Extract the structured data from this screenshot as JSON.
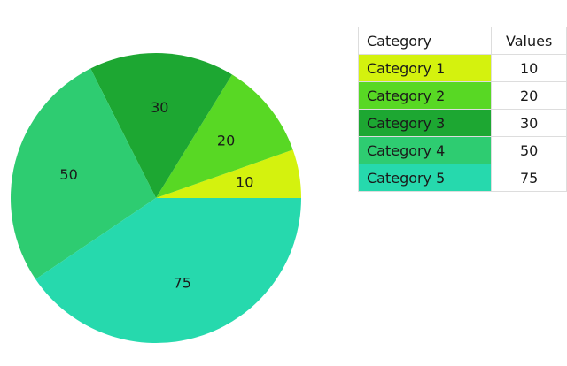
{
  "chart_data": {
    "type": "pie",
    "title": "",
    "columns": {
      "category_header": "Category",
      "values_header": "Values"
    },
    "slices": [
      {
        "label": "Category 1",
        "value": 10,
        "color": "#d4f20e"
      },
      {
        "label": "Category 2",
        "value": 20,
        "color": "#58d824"
      },
      {
        "label": "Category 3",
        "value": 30,
        "color": "#1da732"
      },
      {
        "label": "Category 4",
        "value": 50,
        "color": "#2ecc71"
      },
      {
        "label": "Category 5",
        "value": 75,
        "color": "#26d9ad"
      }
    ],
    "start": "3 o'clock",
    "direction": "counter-clockwise",
    "data_labels": "inside",
    "legend_placement": "right"
  }
}
